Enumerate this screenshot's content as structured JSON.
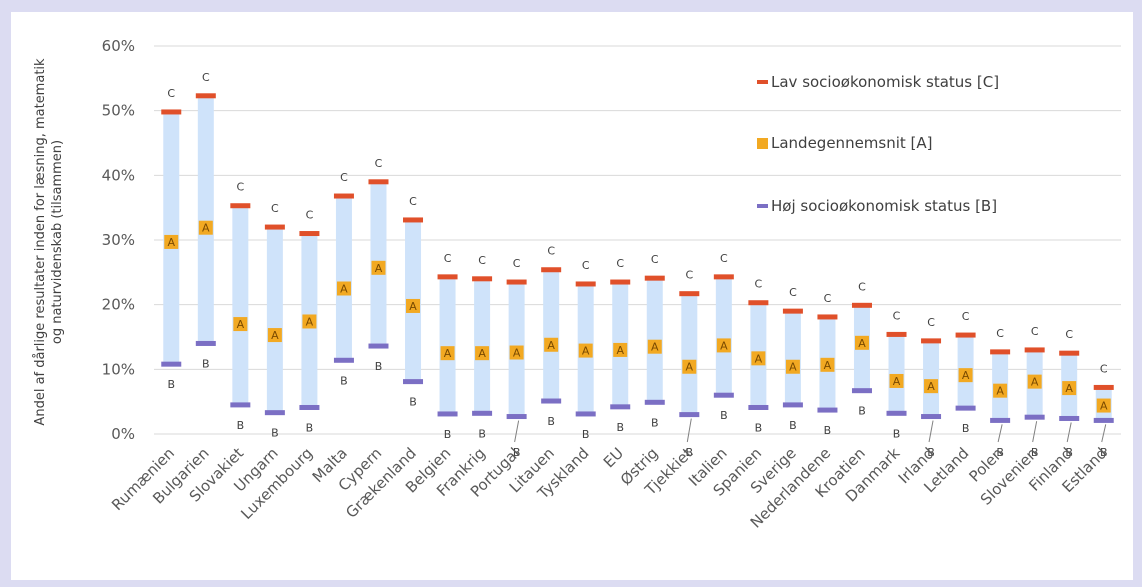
{
  "chart_data": {
    "type": "range",
    "ylabel_lines": [
      "Andel af dårlige resultater inden for læsning, matematik",
      "og naturvidenskab (tilsammen)"
    ],
    "ylim": [
      0,
      60
    ],
    "yticks": [
      0,
      10,
      20,
      30,
      40,
      50,
      60
    ],
    "ytick_labels": [
      "0%",
      "10%",
      "20%",
      "30%",
      "40%",
      "50%",
      "60%"
    ],
    "categories": [
      "Rumænien",
      "Bulgarien",
      "Slovakiet",
      "Ungarn",
      "Luxembourg",
      "Malta",
      "Cypern",
      "Grækenland",
      "Belgien",
      "Frankrig",
      "Portugal",
      "Litauen",
      "Tyskland",
      "EU",
      "Østrig",
      "Tjekkiet",
      "Italien",
      "Spanien",
      "Sverige",
      "Nederlandene",
      "Kroatien",
      "Danmark",
      "Irland",
      "Letland",
      "Polen",
      "Slovenien",
      "Finland",
      "Estland"
    ],
    "series": [
      {
        "name": "Lav socioøkonomisk status [C]",
        "marker": "C",
        "color": "#e0502a",
        "values": [
          49.8,
          52.3,
          35.3,
          32.0,
          31.0,
          36.8,
          39.0,
          33.1,
          24.3,
          24.0,
          23.5,
          25.4,
          23.2,
          23.5,
          24.1,
          21.7,
          24.3,
          20.3,
          19.0,
          18.1,
          19.9,
          15.4,
          14.4,
          15.3,
          12.7,
          13.0,
          12.5,
          7.2
        ]
      },
      {
        "name": "Landegennemsnit [A]",
        "marker": "A",
        "color": "#f2a922",
        "values": [
          29.7,
          31.9,
          17.0,
          15.3,
          17.4,
          22.5,
          25.7,
          19.8,
          12.5,
          12.5,
          12.6,
          13.8,
          12.9,
          13.0,
          13.5,
          10.4,
          13.7,
          11.7,
          10.4,
          10.7,
          14.1,
          8.2,
          7.4,
          9.1,
          6.7,
          8.1,
          7.1,
          4.4
        ]
      },
      {
        "name": "Høj socioøkonomisk status [B]",
        "marker": "B",
        "color": "#7b6fc4",
        "values": [
          10.8,
          14.0,
          4.5,
          3.3,
          4.1,
          11.4,
          13.6,
          8.1,
          3.1,
          3.2,
          2.7,
          5.1,
          3.1,
          4.2,
          4.9,
          3.0,
          6.0,
          4.1,
          4.5,
          3.7,
          6.7,
          3.2,
          2.7,
          4.0,
          2.1,
          2.6,
          2.4,
          2.1
        ]
      }
    ],
    "range_color": "#cfe3fa",
    "legend_position": "top-right",
    "grid": true
  }
}
